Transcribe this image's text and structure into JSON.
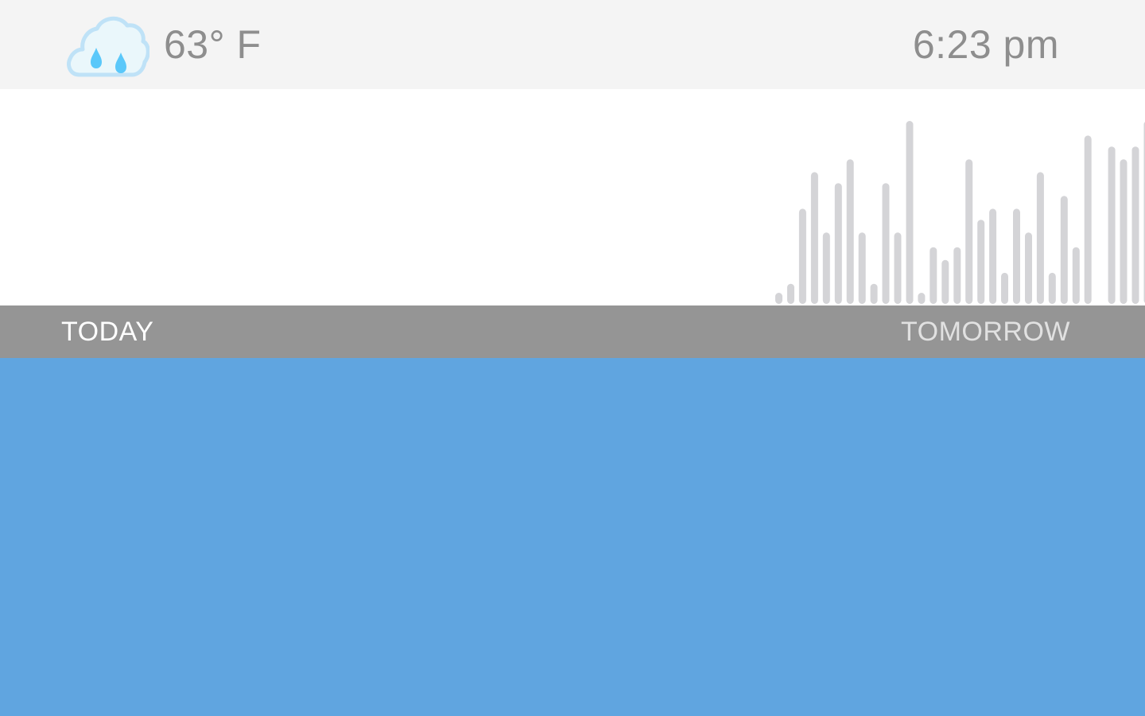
{
  "header": {
    "weather_icon": "rain-cloud-icon",
    "temperature": "63° F",
    "time": "6:23 pm"
  },
  "timeline": {
    "today_label": "TODAY",
    "tomorrow_label": "TOMORROW"
  },
  "chart_data": {
    "type": "bar",
    "description_unit": "relative precipitation intensity (0-1, unlabeled)",
    "values": [
      0.04,
      0.11,
      0.52,
      0.72,
      0.39,
      0.66,
      0.79,
      0.39,
      0.11,
      0.66,
      0.39,
      1.0,
      0.04,
      0.31,
      0.24,
      0.31,
      0.79,
      0.46,
      0.52,
      0.17,
      0.52,
      0.39,
      0.72,
      0.17,
      0.59,
      0.31,
      0.92,
      0.0,
      0.86,
      0.79,
      0.86,
      1.0
    ]
  },
  "colors": {
    "header_bg": "#f4f4f4",
    "text_gray": "#8e8e8e",
    "bar_gray": "#d4d4d7",
    "timeline_bg": "#959595",
    "today_text": "#ffffff",
    "tomorrow_text": "#e1e1e1",
    "content_blue": "#60a5e0",
    "cloud_fill": "#eaf7fb",
    "cloud_stroke": "#bfe2f7",
    "raindrop": "#5ac8fa"
  }
}
